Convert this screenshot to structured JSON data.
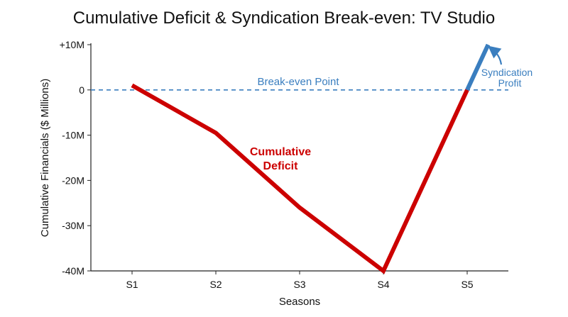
{
  "chart_data": {
    "type": "line",
    "title": "Cumulative Deficit & Syndication Break-even: TV Studio",
    "xlabel": "Seasons",
    "ylabel": "Cumulative Financials ($ Millions)",
    "categories": [
      "S1",
      "S2",
      "S3",
      "S4",
      "S5"
    ],
    "ylim": [
      -40,
      10
    ],
    "yticks": [
      {
        "value": 10,
        "label": "+10M"
      },
      {
        "value": 0,
        "label": "0"
      },
      {
        "value": -10,
        "label": "-10M"
      },
      {
        "value": -20,
        "label": "-20M"
      },
      {
        "value": -30,
        "label": "-30M"
      },
      {
        "value": -40,
        "label": "-40M"
      }
    ],
    "grid": false,
    "series": [
      {
        "name": "Cumulative Deficit",
        "color": "#cc0000",
        "x": [
          "S1",
          "S2",
          "S3",
          "S4",
          "S5"
        ],
        "values": [
          1,
          -9.5,
          -26,
          -40,
          0
        ]
      },
      {
        "name": "Syndication Profit",
        "color": "#3a7ebf",
        "x": [
          "S5",
          "S5+"
        ],
        "x_numeric": [
          5,
          5.25
        ],
        "values": [
          0,
          10
        ]
      }
    ],
    "reference_line": {
      "label": "Break-even Point",
      "value": 0,
      "color": "#3a7ebf"
    },
    "annotations": {
      "deficit_label_line1": "Cumulative",
      "deficit_label_line2": "Deficit",
      "profit_label_line1": "Syndication",
      "profit_label_line2": "Profit"
    }
  }
}
